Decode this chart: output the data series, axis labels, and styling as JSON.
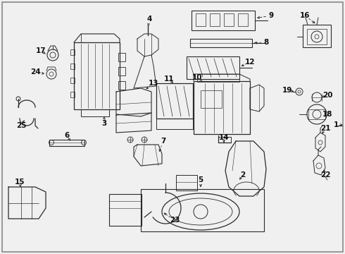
{
  "bg_color": "#f0f0f0",
  "border_color": "#888888",
  "line_color": "#2a2a2a",
  "label_color": "#111111",
  "inner_bg": "#f8f8f8"
}
